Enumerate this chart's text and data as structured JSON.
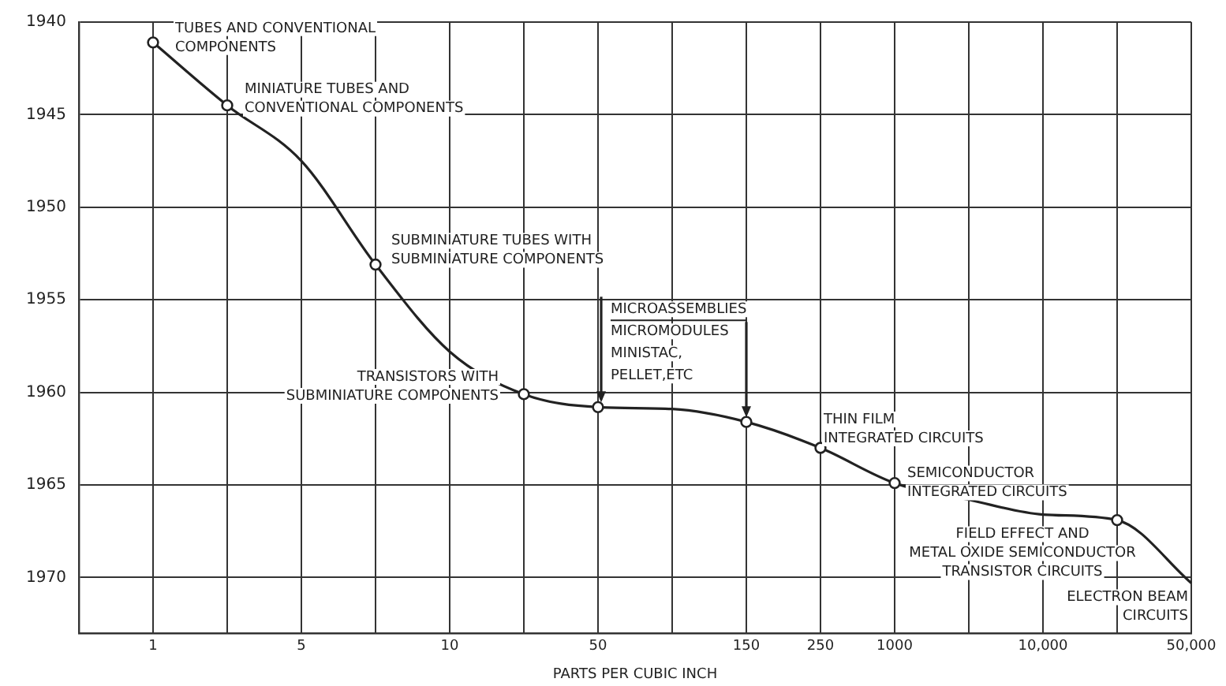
{
  "chart_data": {
    "type": "line",
    "xlabel": "PARTS PER CUBIC INCH",
    "categories": [
      null,
      "1",
      null,
      "5",
      null,
      "10",
      null,
      "50",
      null,
      "150",
      "250",
      "1000",
      null,
      "10,000",
      null,
      "50,000"
    ],
    "ylim": [
      1973,
      1940
    ],
    "yticks": [
      1940,
      1945,
      1950,
      1955,
      1960,
      1965,
      1970
    ],
    "grid": true,
    "series": [
      {
        "color": "#222222",
        "marker": "none",
        "line_style": "solid",
        "values": [
          null,
          1941.1,
          1944.5,
          1947.5,
          1953.1,
          1957.8,
          1960.1,
          1960.8,
          1960.9,
          1961.6,
          1963.0,
          1964.9,
          1965.8,
          1966.6,
          1966.9,
          1970.3
        ]
      },
      {
        "type": "scatter",
        "color": "#222222",
        "marker": "circle",
        "values": [
          null,
          1941.1,
          1944.5,
          null,
          1953.1,
          null,
          1960.1,
          1960.8,
          null,
          1961.6,
          1963.0,
          1964.9,
          null,
          null,
          1966.9,
          null
        ]
      }
    ],
    "annotations": [
      {
        "text": "TUBES AND CONVENTIONAL\nCOMPONENTS",
        "x": "1",
        "y": 1941.1
      },
      "MINIATURE TUBES AND\nCONVENTIONAL COMPONENTS",
      "SUBMINIATURE TUBES WITH\nSUBMINIATURE COMPONENTS",
      "TRANSISTORS WITH\nSUBMINIATURE COMPONENTS",
      {
        "text": "MICROASSEMBLIES\nMICROMODULES\nMINISTAC,\nPELLET,ETC",
        "x": "50",
        "y": 1960.8
      },
      {
        "text": "THIN FILM\nINTEGRATED CIRCUITS",
        "x": "250",
        "y": 1963.0
      },
      {
        "text": "SEMICONDUCTOR\nINTEGRATED CIRCUITS",
        "x": "1000",
        "y": 1964.9
      },
      "FIELD EFFECT AND\nMETAL OXIDE SEMICONDUCTOR\nTRANSISTOR CIRCUITS",
      {
        "text": "ELECTRON BEAM\nCIRCUITS",
        "x": "50,000",
        "y": 1970.3
      }
    ]
  }
}
